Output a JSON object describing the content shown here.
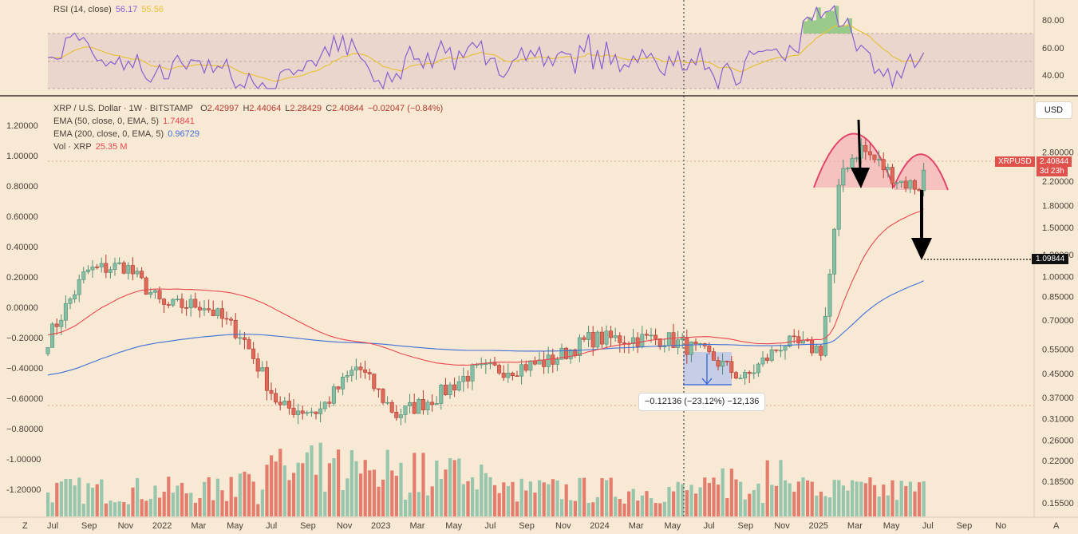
{
  "rsi_pane": {
    "label": "RSI (14, close)",
    "rsi_value": "56.17",
    "ma_value": "55.56",
    "ticks": [
      "80.00",
      "60.00",
      "40.00"
    ]
  },
  "main_pane": {
    "title": "XRP / U.S. Dollar · 1W · BITSTAMP",
    "ohlc": {
      "open_label": "O",
      "open": "2.42997",
      "high_label": "H",
      "high": "2.44064",
      "low_label": "L",
      "low": "2.28429",
      "close_label": "C",
      "close": "2.40844",
      "change": "−0.02047 (−0.84%)"
    },
    "ema50": {
      "label": "EMA (50, close, 0, EMA, 5)",
      "value": "1.74841"
    },
    "ema200": {
      "label": "EMA (200, close, 0, EMA, 5)",
      "value": "0.96729"
    },
    "volume": {
      "label": "Vol · XRP",
      "value": "25.35 M"
    },
    "currency_button": "USD",
    "symbol_badge": "XRPUSD",
    "price_badge": "2.40844",
    "countdown_badge": "3d 23h",
    "target_badge": "1.09844",
    "measure_label": "−0.12136 (−23.12%) −12,136"
  },
  "left_axis_ticks": [
    "1.20000",
    "1.00000",
    "0.80000",
    "0.60000",
    "0.40000",
    "0.20000",
    "0.00000",
    "−0.20000",
    "−0.40000",
    "−0.60000",
    "−0.80000",
    "-1.00000",
    "-1.20000"
  ],
  "right_axis_ticks": [
    "2.80000",
    "2.20000",
    "1.80000",
    "1.50000",
    "1.20000",
    "1.00000",
    "0.85000",
    "0.70000",
    "0.55000",
    "0.45000",
    "0.37000",
    "0.31000",
    "0.26000",
    "0.22000",
    "0.18500",
    "0.15500"
  ],
  "time_axis": [
    "Jul",
    "Sep",
    "Nov",
    "2022",
    "Mar",
    "May",
    "Jul",
    "Sep",
    "Nov",
    "2023",
    "Mar",
    "May",
    "Jul",
    "Sep",
    "Nov",
    "2024",
    "Mar",
    "May",
    "Jul",
    "Sep",
    "Nov",
    "2025",
    "Mar",
    "May",
    "Jul",
    "Sep",
    "No"
  ],
  "corner_left": "Z",
  "corner_right": "A",
  "colors": {
    "up": "#86bfa6",
    "down": "#e06a5a",
    "ema50": "#e8474f",
    "ema200": "#3f6fd8",
    "rsi_line": "#8a5fd0",
    "rsi_ma": "#e8c13a",
    "pattern": "#e2436b",
    "price_badge_bg": "#e0514b",
    "background": "#f8e9d4"
  },
  "chart_data": {
    "type": "candlestick",
    "interval": "1W",
    "scale": "log",
    "price_range": [
      0.15,
      3.2
    ],
    "sampled_closes": [
      {
        "x": "2021-07",
        "y": 0.6
      },
      {
        "x": "2021-09",
        "y": 1.05
      },
      {
        "x": "2021-11",
        "y": 1.1
      },
      {
        "x": "2022-01",
        "y": 0.78
      },
      {
        "x": "2022-03",
        "y": 0.8
      },
      {
        "x": "2022-05",
        "y": 0.62
      },
      {
        "x": "2022-07",
        "y": 0.34
      },
      {
        "x": "2022-09",
        "y": 0.33
      },
      {
        "x": "2022-11",
        "y": 0.48
      },
      {
        "x": "2023-01",
        "y": 0.32
      },
      {
        "x": "2023-03",
        "y": 0.37
      },
      {
        "x": "2023-05",
        "y": 0.46
      },
      {
        "x": "2023-07",
        "y": 0.47
      },
      {
        "x": "2023-09",
        "y": 0.5
      },
      {
        "x": "2023-11",
        "y": 0.6
      },
      {
        "x": "2024-01",
        "y": 0.6
      },
      {
        "x": "2024-03",
        "y": 0.6
      },
      {
        "x": "2024-05",
        "y": 0.53
      },
      {
        "x": "2024-07",
        "y": 0.43
      },
      {
        "x": "2024-09",
        "y": 0.58
      },
      {
        "x": "2024-11",
        "y": 0.55
      },
      {
        "x": "2024-12",
        "y": 2.4
      },
      {
        "x": "2025-01",
        "y": 2.9
      },
      {
        "x": "2025-03",
        "y": 2.2
      },
      {
        "x": "2025-04",
        "y": 2.1
      },
      {
        "x": "2025-05",
        "y": 2.41
      }
    ],
    "ema50_end": 1.74841,
    "ema200_end": 0.96729,
    "rsi_range": [
      30,
      92
    ],
    "rsi_last": 56.17,
    "rsi_ma_last": 55.56,
    "projection_target": 1.09844
  }
}
